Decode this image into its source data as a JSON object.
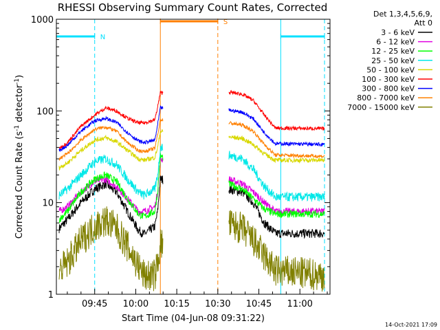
{
  "chart_data": {
    "type": "line",
    "title": "RHESSI Observing Summary Count Rates, Corrected",
    "xlabel": "Start Time (04-Jun-08 09:31:22)",
    "ylabel_main": "Corrected Count Rate (s",
    "ylabel_sup1": "-1",
    "ylabel_mid": " detector",
    "ylabel_sup2": "-1",
    "ylabel_end": ")",
    "y_scale": "log",
    "ylim": [
      1,
      1000
    ],
    "xlim": [
      "09:31",
      "11:11"
    ],
    "x_ticks": [
      "09:45",
      "10:00",
      "10:15",
      "10:30",
      "10:45",
      "11:00"
    ],
    "y_ticks": [
      "1",
      "10",
      "100",
      "1000"
    ],
    "footer": "14-Oct-2021 17:09",
    "legend_header": [
      "Det 1,3,4,5,6,9,",
      "Att 0"
    ],
    "legend_placement": "right",
    "bars": [
      {
        "label": "N",
        "start": "09:31",
        "end": "09:45",
        "level": 650,
        "color": "#00e0ff"
      },
      {
        "label": "S",
        "start": "10:09",
        "end": "10:30",
        "level": 950,
        "color": "#ff7f00"
      },
      {
        "label": "",
        "start": "10:53",
        "end": "11:09",
        "level": 650,
        "color": "#00e0ff"
      }
    ],
    "vlines": [
      {
        "t": "09:45",
        "style": "dashed",
        "color": "#00e0ff"
      },
      {
        "t": "10:09",
        "style": "solid",
        "color": "#ff7f00"
      },
      {
        "t": "10:30",
        "style": "dashed",
        "color": "#ff7f00"
      },
      {
        "t": "10:53",
        "style": "solid",
        "color": "#00e0ff"
      },
      {
        "t": "11:09",
        "style": "dashed",
        "color": "#00e0ff"
      }
    ],
    "gap": [
      "10:10",
      "10:34"
    ],
    "series": [
      {
        "name": "3 - 6 keV",
        "color": "#000000",
        "noise": 0.05,
        "points": [
          [
            "09:32",
            5.2
          ],
          [
            "09:35",
            6.5
          ],
          [
            "09:40",
            10
          ],
          [
            "09:45",
            14
          ],
          [
            "09:49",
            16
          ],
          [
            "09:53",
            13
          ],
          [
            "09:57",
            8
          ],
          [
            "10:01",
            5
          ],
          [
            "10:03",
            4.5
          ],
          [
            "10:07",
            5.5
          ],
          [
            "10:08",
            8
          ],
          [
            "10:09",
            18
          ],
          [
            "10:34",
            14
          ],
          [
            "10:39",
            13
          ],
          [
            "10:43",
            10
          ],
          [
            "10:47",
            6
          ],
          [
            "10:51",
            4.6
          ],
          [
            "11:09",
            4.6
          ]
        ]
      },
      {
        "name": "6 - 12 keV",
        "color": "#e000e0",
        "noise": 0.04,
        "points": [
          [
            "09:32",
            8
          ],
          [
            "09:35",
            9
          ],
          [
            "09:40",
            13
          ],
          [
            "09:45",
            17
          ],
          [
            "09:49",
            18
          ],
          [
            "09:53",
            15
          ],
          [
            "09:57",
            11
          ],
          [
            "10:01",
            8
          ],
          [
            "10:03",
            8
          ],
          [
            "10:07",
            9
          ],
          [
            "10:08",
            13
          ],
          [
            "10:09",
            30
          ],
          [
            "10:34",
            18
          ],
          [
            "10:39",
            16
          ],
          [
            "10:43",
            13
          ],
          [
            "10:47",
            10
          ],
          [
            "10:51",
            8
          ],
          [
            "11:09",
            8
          ]
        ]
      },
      {
        "name": "12 - 25 keV",
        "color": "#00ff00",
        "noise": 0.04,
        "points": [
          [
            "09:32",
            6.5
          ],
          [
            "09:35",
            8
          ],
          [
            "09:40",
            13
          ],
          [
            "09:45",
            18
          ],
          [
            "09:49",
            20
          ],
          [
            "09:53",
            17
          ],
          [
            "09:57",
            11
          ],
          [
            "10:01",
            7.5
          ],
          [
            "10:03",
            7
          ],
          [
            "10:07",
            8
          ],
          [
            "10:08",
            13
          ],
          [
            "10:09",
            32
          ],
          [
            "10:34",
            16
          ],
          [
            "10:39",
            14
          ],
          [
            "10:43",
            11
          ],
          [
            "10:47",
            8.5
          ],
          [
            "10:51",
            7.5
          ],
          [
            "11:09",
            7.5
          ]
        ]
      },
      {
        "name": "25 - 50 keV",
        "color": "#00e8e8",
        "noise": 0.05,
        "points": [
          [
            "09:32",
            12
          ],
          [
            "09:35",
            14
          ],
          [
            "09:40",
            20
          ],
          [
            "09:45",
            28
          ],
          [
            "09:49",
            30
          ],
          [
            "09:53",
            26
          ],
          [
            "09:57",
            18
          ],
          [
            "10:01",
            13
          ],
          [
            "10:03",
            12
          ],
          [
            "10:07",
            14
          ],
          [
            "10:08",
            20
          ],
          [
            "10:09",
            40
          ],
          [
            "10:34",
            33
          ],
          [
            "10:39",
            30
          ],
          [
            "10:43",
            23
          ],
          [
            "10:47",
            15
          ],
          [
            "10:51",
            11.5
          ],
          [
            "11:09",
            11.5
          ]
        ]
      },
      {
        "name": "50 - 100 keV",
        "color": "#d8d800",
        "noise": 0.025,
        "points": [
          [
            "09:32",
            24
          ],
          [
            "09:35",
            27
          ],
          [
            "09:40",
            37
          ],
          [
            "09:45",
            48
          ],
          [
            "09:49",
            51
          ],
          [
            "09:53",
            46
          ],
          [
            "09:57",
            37
          ],
          [
            "10:01",
            30
          ],
          [
            "10:03",
            29
          ],
          [
            "10:07",
            31
          ],
          [
            "10:08",
            40
          ],
          [
            "10:09",
            60
          ],
          [
            "10:34",
            52
          ],
          [
            "10:39",
            50
          ],
          [
            "10:43",
            43
          ],
          [
            "10:47",
            34
          ],
          [
            "10:51",
            29
          ],
          [
            "11:09",
            29
          ]
        ]
      },
      {
        "name": "100 - 300 keV",
        "color": "#ff0000",
        "noise": 0.02,
        "points": [
          [
            "09:32",
            39
          ],
          [
            "09:35",
            45
          ],
          [
            "09:40",
            68
          ],
          [
            "09:45",
            90
          ],
          [
            "09:49",
            108
          ],
          [
            "09:53",
            100
          ],
          [
            "09:57",
            83
          ],
          [
            "10:01",
            74
          ],
          [
            "10:03",
            74
          ],
          [
            "10:07",
            80
          ],
          [
            "10:08",
            110
          ],
          [
            "10:09",
            158
          ],
          [
            "10:34",
            160
          ],
          [
            "10:39",
            152
          ],
          [
            "10:43",
            130
          ],
          [
            "10:47",
            90
          ],
          [
            "10:51",
            65
          ],
          [
            "11:09",
            64
          ]
        ]
      },
      {
        "name": "300 - 800 keV",
        "color": "#0000ff",
        "noise": 0.02,
        "points": [
          [
            "09:32",
            37
          ],
          [
            "09:35",
            42
          ],
          [
            "09:40",
            60
          ],
          [
            "09:45",
            78
          ],
          [
            "09:49",
            83
          ],
          [
            "09:53",
            75
          ],
          [
            "09:57",
            58
          ],
          [
            "10:01",
            47
          ],
          [
            "10:03",
            45
          ],
          [
            "10:07",
            48
          ],
          [
            "10:08",
            70
          ],
          [
            "10:09",
            108
          ],
          [
            "10:34",
            102
          ],
          [
            "10:39",
            97
          ],
          [
            "10:43",
            82
          ],
          [
            "10:47",
            58
          ],
          [
            "10:51",
            44
          ],
          [
            "11:09",
            43
          ]
        ]
      },
      {
        "name": "800 - 7000 keV",
        "color": "#ff8000",
        "noise": 0.02,
        "points": [
          [
            "09:32",
            30
          ],
          [
            "09:35",
            34
          ],
          [
            "09:40",
            48
          ],
          [
            "09:45",
            63
          ],
          [
            "09:49",
            67
          ],
          [
            "09:53",
            60
          ],
          [
            "09:57",
            45
          ],
          [
            "10:01",
            37
          ],
          [
            "10:03",
            36
          ],
          [
            "10:07",
            39
          ],
          [
            "10:08",
            55
          ],
          [
            "10:09",
            80
          ],
          [
            "10:34",
            74
          ],
          [
            "10:39",
            70
          ],
          [
            "10:43",
            60
          ],
          [
            "10:47",
            43
          ],
          [
            "10:51",
            33
          ],
          [
            "11:09",
            32
          ]
        ]
      },
      {
        "name": "7000 - 15000 keV",
        "color": "#808000",
        "noise": 0.18,
        "points": [
          [
            "09:32",
            1.8
          ],
          [
            "09:35",
            2.2
          ],
          [
            "09:40",
            3.8
          ],
          [
            "09:45",
            5.5
          ],
          [
            "09:49",
            6.4
          ],
          [
            "09:53",
            5.2
          ],
          [
            "09:57",
            3.3
          ],
          [
            "10:01",
            2.0
          ],
          [
            "10:03",
            1.6
          ],
          [
            "10:07",
            1.6
          ],
          [
            "10:08",
            2.2
          ],
          [
            "10:09",
            3.5
          ],
          [
            "10:34",
            5.8
          ],
          [
            "10:39",
            5.2
          ],
          [
            "10:43",
            3.8
          ],
          [
            "10:47",
            2.6
          ],
          [
            "10:51",
            1.8
          ],
          [
            "11:09",
            1.6
          ]
        ]
      }
    ]
  }
}
